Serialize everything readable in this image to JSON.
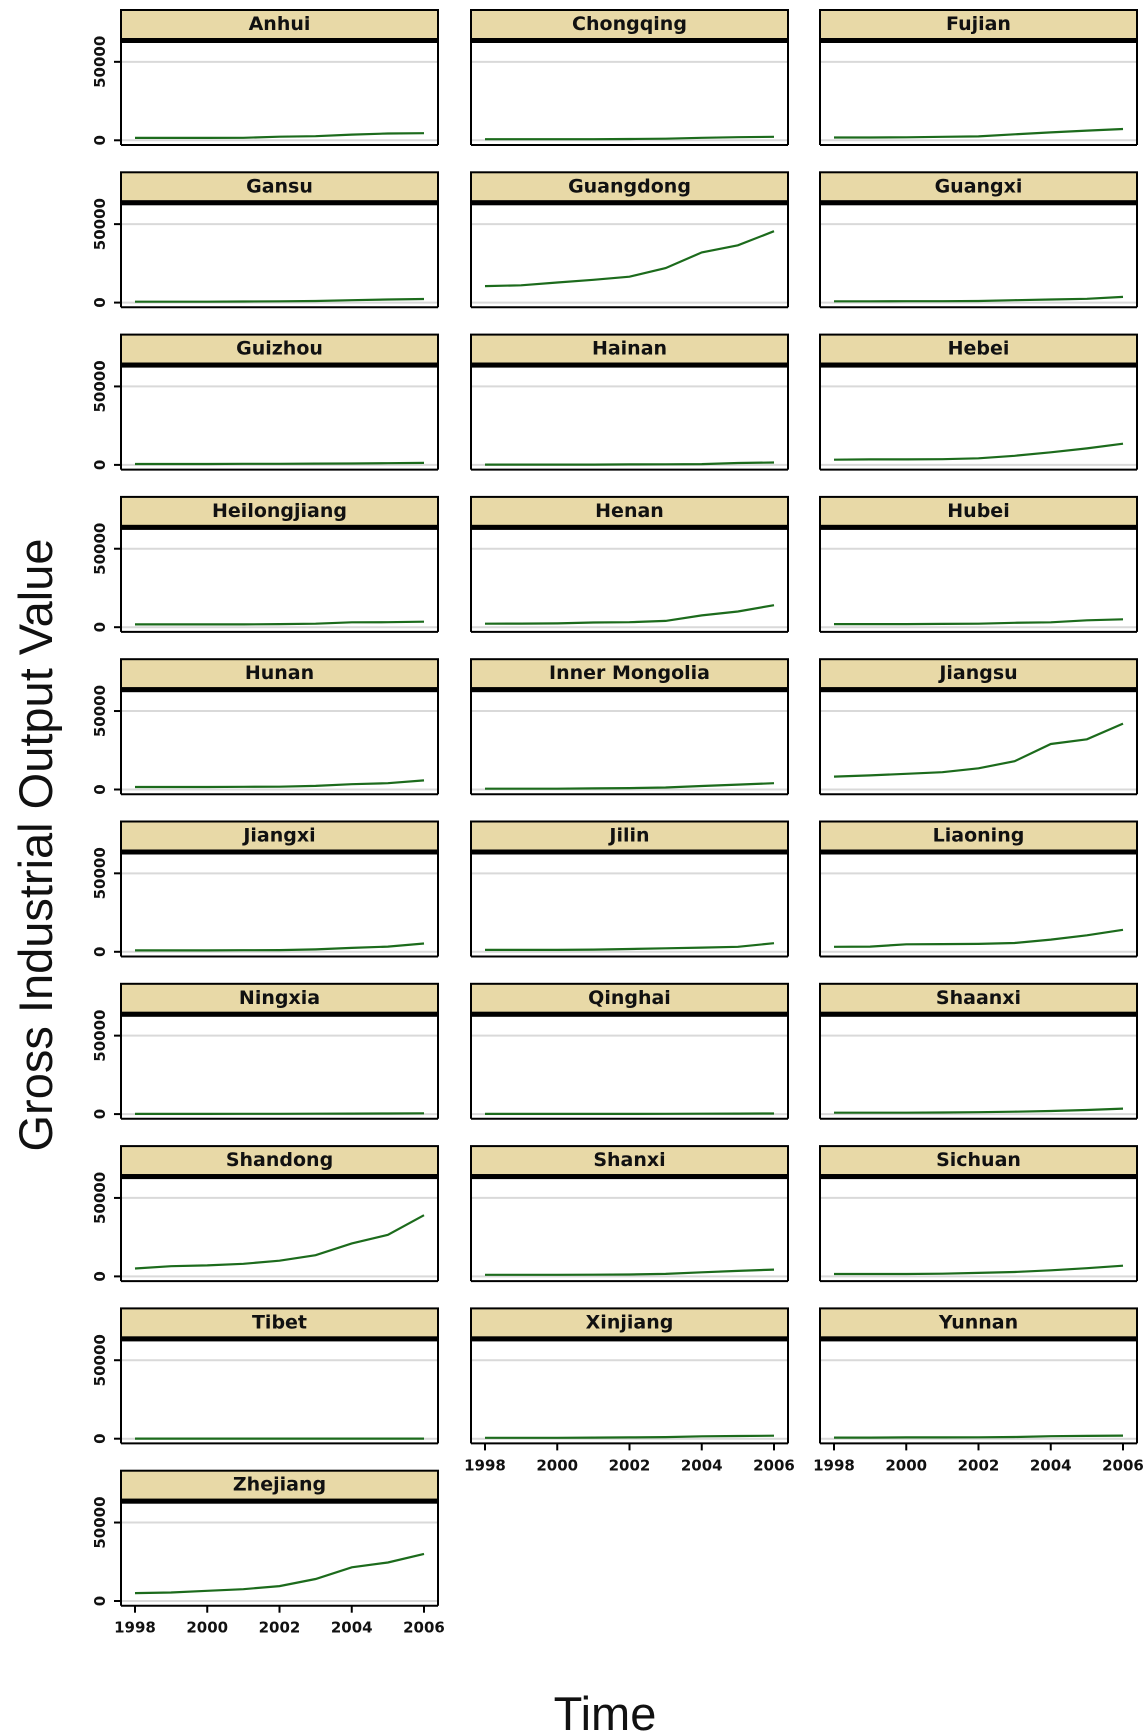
{
  "chart_data": {
    "type": "line",
    "layout": "facet-grid-3-columns",
    "xlabel": "Time",
    "ylabel": "Gross Industrial Output Value",
    "xlim": [
      1998,
      2006
    ],
    "x_ticks": [
      1998,
      2000,
      2002,
      2004,
      2006
    ],
    "ylim": [
      -3000,
      62000
    ],
    "y_ticks": [
      0,
      50000
    ],
    "y_tick_labels": [
      "0",
      "50000"
    ],
    "gridlines": [
      0,
      50000
    ],
    "x": [
      1998,
      1999,
      2000,
      2001,
      2002,
      2003,
      2004,
      2005,
      2006
    ],
    "colors": {
      "line": "#1c6b1c",
      "strip_bg": "#e8d9a7",
      "grid": "#d9d9d9"
    },
    "panels": [
      {
        "name": "Anhui",
        "values": [
          1500,
          1500,
          1500,
          1600,
          2300,
          2600,
          3600,
          4300,
          4500
        ]
      },
      {
        "name": "Chongqing",
        "values": [
          700,
          700,
          700,
          700,
          800,
          1000,
          1600,
          2000,
          2200
        ]
      },
      {
        "name": "Fujian",
        "values": [
          1800,
          1800,
          1900,
          2200,
          2500,
          3800,
          5000,
          6200,
          7200
        ]
      },
      {
        "name": "Gansu",
        "values": [
          600,
          600,
          600,
          700,
          800,
          1000,
          1500,
          2000,
          2300
        ]
      },
      {
        "name": "Guangdong",
        "values": [
          10500,
          11000,
          12800,
          14500,
          16500,
          22000,
          32000,
          36500,
          45500
        ]
      },
      {
        "name": "Guangxi",
        "values": [
          800,
          800,
          900,
          900,
          1000,
          1500,
          2000,
          2400,
          3600
        ]
      },
      {
        "name": "Guizhou",
        "values": [
          600,
          600,
          600,
          700,
          700,
          800,
          900,
          1100,
          1300
        ]
      },
      {
        "name": "Hainan",
        "values": [
          200,
          200,
          200,
          200,
          300,
          400,
          500,
          1200,
          1500
        ]
      },
      {
        "name": "Hebei",
        "values": [
          3300,
          3500,
          3500,
          3600,
          4200,
          5800,
          8000,
          10500,
          13500
        ]
      },
      {
        "name": "Heilongjiang",
        "values": [
          1800,
          1800,
          1800,
          1800,
          2000,
          2200,
          3100,
          3200,
          3500
        ]
      },
      {
        "name": "Henan",
        "values": [
          2200,
          2300,
          2400,
          3000,
          3200,
          4000,
          7500,
          10000,
          14000
        ]
      },
      {
        "name": "Hubei",
        "values": [
          2000,
          2000,
          2000,
          2100,
          2200,
          2800,
          3100,
          4400,
          5000
        ]
      },
      {
        "name": "Hunan",
        "values": [
          1600,
          1600,
          1600,
          1700,
          1800,
          2300,
          3400,
          4000,
          5800
        ]
      },
      {
        "name": "Inner Mongolia",
        "values": [
          500,
          500,
          500,
          700,
          900,
          1300,
          2200,
          3100,
          4000
        ]
      },
      {
        "name": "Jiangsu",
        "values": [
          8200,
          9000,
          10000,
          11000,
          13500,
          18000,
          29000,
          32000,
          42000
        ]
      },
      {
        "name": "Jiangxi",
        "values": [
          900,
          900,
          900,
          1000,
          1100,
          1500,
          2500,
          3300,
          5300
        ]
      },
      {
        "name": "Jilin",
        "values": [
          1200,
          1200,
          1200,
          1400,
          1800,
          2200,
          2700,
          3200,
          5500
        ]
      },
      {
        "name": "Liaoning",
        "values": [
          3200,
          3300,
          4800,
          4900,
          5000,
          5600,
          7800,
          10500,
          14000
        ]
      },
      {
        "name": "Ningxia",
        "values": [
          150,
          150,
          150,
          200,
          200,
          250,
          300,
          400,
          500
        ]
      },
      {
        "name": "Qinghai",
        "values": [
          100,
          100,
          100,
          100,
          150,
          200,
          250,
          300,
          400
        ]
      },
      {
        "name": "Shaanxi",
        "values": [
          900,
          900,
          900,
          1000,
          1200,
          1500,
          2000,
          2600,
          3500
        ]
      },
      {
        "name": "Shandong",
        "values": [
          5000,
          6500,
          7000,
          8000,
          10000,
          13500,
          21000,
          26500,
          39000
        ]
      },
      {
        "name": "Shanxi",
        "values": [
          1000,
          1000,
          1000,
          1100,
          1200,
          1600,
          2600,
          3500,
          4300
        ]
      },
      {
        "name": "Sichuan",
        "values": [
          1500,
          1500,
          1500,
          1700,
          2200,
          2800,
          3900,
          5200,
          6800
        ]
      },
      {
        "name": "Tibet",
        "values": [
          30,
          30,
          30,
          30,
          40,
          50,
          60,
          70,
          80
        ]
      },
      {
        "name": "Xinjiang",
        "values": [
          600,
          600,
          600,
          700,
          800,
          1000,
          1500,
          1700,
          1900
        ]
      },
      {
        "name": "Yunnan",
        "values": [
          700,
          700,
          800,
          800,
          900,
          1100,
          1600,
          1800,
          2000
        ]
      },
      {
        "name": "Zhejiang",
        "values": [
          5000,
          5400,
          6500,
          7500,
          9500,
          14000,
          21500,
          24500,
          30000
        ]
      }
    ]
  }
}
